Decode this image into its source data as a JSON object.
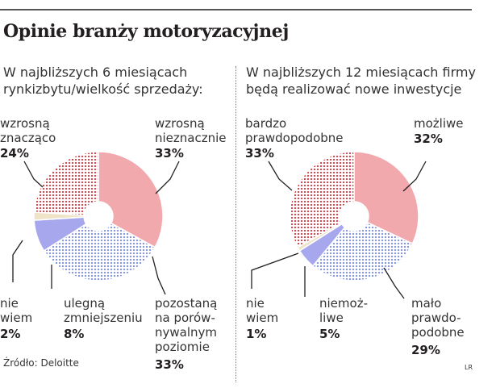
{
  "title": "Opinie branży motoryzacyjnej",
  "source": "Źródło: Deloitte",
  "credit": "LR",
  "colors": {
    "dotted_red": "#d63a45",
    "solid_pink": "#f2a9ae",
    "dotted_blue": "#7e8ee8",
    "solid_violet": "#a7a7ee",
    "beige": "#efe3c8"
  },
  "chart_data": [
    {
      "type": "pie",
      "title": "W najbliższych 6 miesiącach rynkizbytu/wielkość sprzedaży:",
      "subtitle_lines": [
        "W najbliższych 6 miesiącach",
        "rynkizbytu/wielkość sprzedaży:"
      ],
      "slices": [
        {
          "label_lines": [
            "wzrosną",
            "nieznacznie"
          ],
          "value": 33,
          "display": "33%",
          "color": "#f2a9ae",
          "pattern": "solid"
        },
        {
          "label_lines": [
            "pozostaną",
            "na porów-",
            "nywalnym",
            "poziomie"
          ],
          "value": 33,
          "display": "33%",
          "color": "#7e8ee8",
          "pattern": "dots"
        },
        {
          "label_lines": [
            "ulegną",
            "zmniejszeniu"
          ],
          "value": 8,
          "display": "8%",
          "color": "#a7a7ee",
          "pattern": "solid"
        },
        {
          "label_lines": [
            "nie",
            "wiem"
          ],
          "value": 2,
          "display": "2%",
          "color": "#efe3c8",
          "pattern": "solid"
        },
        {
          "label_lines": [
            "wzrosną",
            "znacząco"
          ],
          "value": 24,
          "display": "24%",
          "color": "#d63a45",
          "pattern": "dots"
        }
      ]
    },
    {
      "type": "pie",
      "title": "W najbliższych 12 miesiącach firmy będą realizować nowe inwestycje",
      "subtitle_lines": [
        "W najbliższych 12 miesiącach firmy",
        "będą realizować nowe inwestycje"
      ],
      "slices": [
        {
          "label_lines": [
            "możliwe"
          ],
          "value": 32,
          "display": "32%",
          "color": "#f2a9ae",
          "pattern": "solid"
        },
        {
          "label_lines": [
            "mało",
            "prawdo-",
            "podobne"
          ],
          "value": 29,
          "display": "29%",
          "color": "#7e8ee8",
          "pattern": "dots"
        },
        {
          "label_lines": [
            "niemoż-",
            "liwe"
          ],
          "value": 5,
          "display": "5%",
          "color": "#a7a7ee",
          "pattern": "solid"
        },
        {
          "label_lines": [
            "nie",
            "wiem"
          ],
          "value": 1,
          "display": "1%",
          "color": "#efe3c8",
          "pattern": "solid"
        },
        {
          "label_lines": [
            "bardzo",
            "prawdopodobne"
          ],
          "value": 33,
          "display": "33%",
          "color": "#d63a45",
          "pattern": "dots"
        }
      ]
    }
  ]
}
